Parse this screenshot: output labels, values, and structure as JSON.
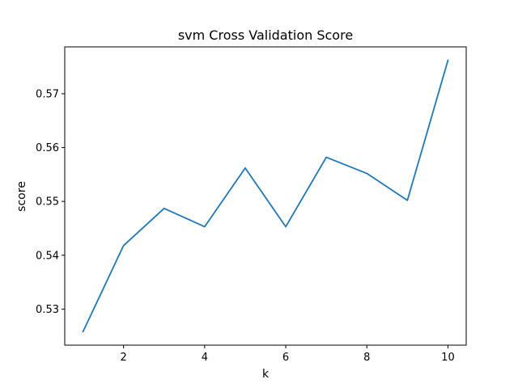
{
  "chart_data": {
    "type": "line",
    "title": "svm Cross Validation Score",
    "xlabel": "k",
    "ylabel": "score",
    "xlim": [
      0.55,
      10.45
    ],
    "ylim": [
      0.5233,
      0.5787
    ],
    "xticks": [
      2,
      4,
      6,
      8,
      10
    ],
    "yticks": [
      0.53,
      0.54,
      0.55,
      0.56,
      0.57
    ],
    "grid": false,
    "series": [
      {
        "color": "#1f77b4",
        "x": [
          1,
          2,
          3,
          4,
          5,
          6,
          7,
          8,
          9,
          10
        ],
        "y": [
          0.5258,
          0.5418,
          0.5487,
          0.5453,
          0.5562,
          0.5453,
          0.5582,
          0.5552,
          0.5502,
          0.5762
        ]
      }
    ]
  }
}
